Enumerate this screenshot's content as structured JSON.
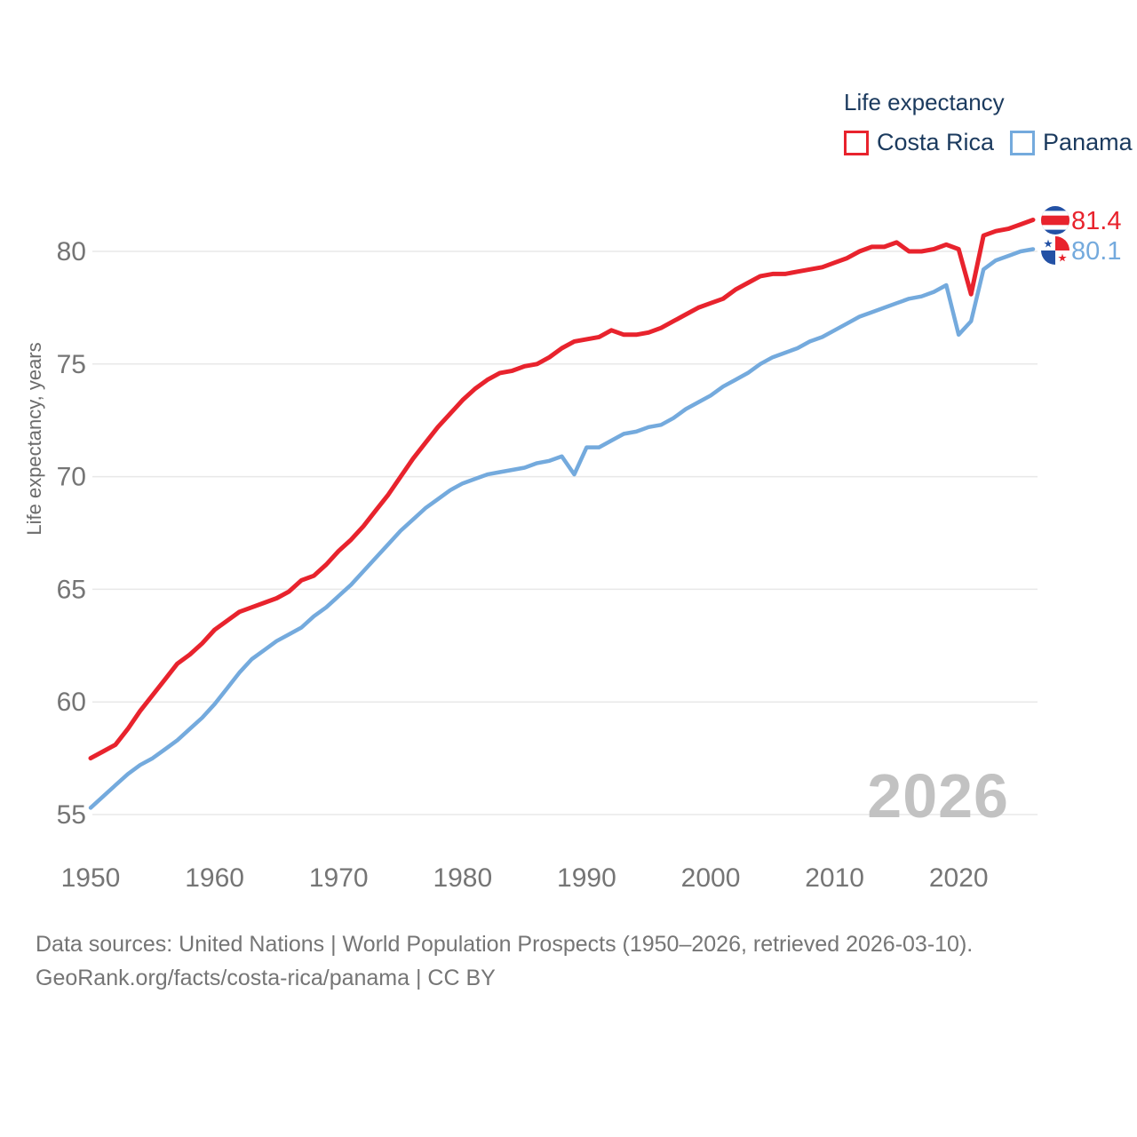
{
  "legend": {
    "title": "Life expectancy",
    "items": [
      {
        "label": "Costa Rica",
        "color": "#e8232d"
      },
      {
        "label": "Panama",
        "color": "#74aadd"
      }
    ]
  },
  "watermark": "2026",
  "source": {
    "line1": "Data sources: United Nations | World Population Prospects (1950–2026, retrieved 2026-03-10).",
    "line2": "GeoRank.org/facts/costa-rica/panama | CC BY"
  },
  "flag_colors": {
    "blue": "#2351a5",
    "red": "#e8232d",
    "white": "#ffffff"
  },
  "chart_data": {
    "type": "line",
    "title": "Life expectancy",
    "xlabel": "",
    "ylabel": "Life expectancy, years",
    "xlim": [
      1950,
      2026
    ],
    "ylim": [
      54,
      82
    ],
    "grid": "horizontal",
    "legend_position": "top-right",
    "yticks": [
      55,
      60,
      65,
      70,
      75,
      80
    ],
    "xticks": [
      1950,
      1960,
      1970,
      1980,
      1990,
      2000,
      2010,
      2020
    ],
    "x": [
      1950,
      1951,
      1952,
      1953,
      1954,
      1955,
      1956,
      1957,
      1958,
      1959,
      1960,
      1961,
      1962,
      1963,
      1964,
      1965,
      1966,
      1967,
      1968,
      1969,
      1970,
      1971,
      1972,
      1973,
      1974,
      1975,
      1976,
      1977,
      1978,
      1979,
      1980,
      1981,
      1982,
      1983,
      1984,
      1985,
      1986,
      1987,
      1988,
      1989,
      1990,
      1991,
      1992,
      1993,
      1994,
      1995,
      1996,
      1997,
      1998,
      1999,
      2000,
      2001,
      2002,
      2003,
      2004,
      2005,
      2006,
      2007,
      2008,
      2009,
      2010,
      2011,
      2012,
      2013,
      2014,
      2015,
      2016,
      2017,
      2018,
      2019,
      2020,
      2021,
      2022,
      2023,
      2024,
      2025,
      2026
    ],
    "series": [
      {
        "name": "Costa Rica",
        "color": "#e8232d",
        "end_label": "81.4",
        "values": [
          57.5,
          57.8,
          58.1,
          58.8,
          59.6,
          60.3,
          61.0,
          61.7,
          62.1,
          62.6,
          63.2,
          63.6,
          64.0,
          64.2,
          64.4,
          64.6,
          64.9,
          65.4,
          65.6,
          66.1,
          66.7,
          67.2,
          67.8,
          68.5,
          69.2,
          70.0,
          70.8,
          71.5,
          72.2,
          72.8,
          73.4,
          73.9,
          74.3,
          74.6,
          74.7,
          74.9,
          75.0,
          75.3,
          75.7,
          76.0,
          76.1,
          76.2,
          76.5,
          76.3,
          76.3,
          76.4,
          76.6,
          76.9,
          77.2,
          77.5,
          77.7,
          77.9,
          78.3,
          78.6,
          78.9,
          79.0,
          79.0,
          79.1,
          79.2,
          79.3,
          79.5,
          79.7,
          80.0,
          80.2,
          80.2,
          80.4,
          80.0,
          80.0,
          80.1,
          80.3,
          80.1,
          78.1,
          80.7,
          80.9,
          81.0,
          81.2,
          81.4
        ]
      },
      {
        "name": "Panama",
        "color": "#74aadd",
        "end_label": "80.1",
        "values": [
          55.3,
          55.8,
          56.3,
          56.8,
          57.2,
          57.5,
          57.9,
          58.3,
          58.8,
          59.3,
          59.9,
          60.6,
          61.3,
          61.9,
          62.3,
          62.7,
          63.0,
          63.3,
          63.8,
          64.2,
          64.7,
          65.2,
          65.8,
          66.4,
          67.0,
          67.6,
          68.1,
          68.6,
          69.0,
          69.4,
          69.7,
          69.9,
          70.1,
          70.2,
          70.3,
          70.4,
          70.6,
          70.7,
          70.9,
          70.1,
          71.3,
          71.3,
          71.6,
          71.9,
          72.0,
          72.2,
          72.3,
          72.6,
          73.0,
          73.3,
          73.6,
          74.0,
          74.3,
          74.6,
          75.0,
          75.3,
          75.5,
          75.7,
          76.0,
          76.2,
          76.5,
          76.8,
          77.1,
          77.3,
          77.5,
          77.7,
          77.9,
          78.0,
          78.2,
          78.5,
          76.3,
          76.9,
          79.2,
          79.6,
          79.8,
          80.0,
          80.1
        ]
      }
    ]
  }
}
